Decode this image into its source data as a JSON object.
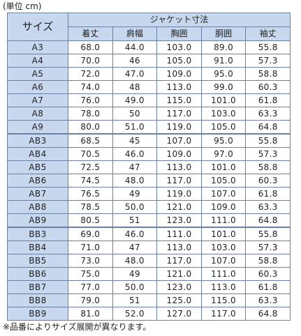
{
  "unit_label": "(単位 cm)",
  "header": {
    "size_label": "サイズ",
    "group_label": "ジャケット寸法",
    "columns": [
      "着丈",
      "肩幅",
      "胸囲",
      "胴囲",
      "袖丈"
    ]
  },
  "groups": [
    {
      "name": "A",
      "rows": [
        {
          "size": "A3",
          "values": [
            "68.0",
            "44.0",
            "103.0",
            "89.0",
            "55.8"
          ]
        },
        {
          "size": "A4",
          "values": [
            "70.0",
            "46",
            "105.0",
            "91.0",
            "57.3"
          ]
        },
        {
          "size": "A5",
          "values": [
            "72.0",
            "47.0",
            "109.0",
            "95.0",
            "58.8"
          ]
        },
        {
          "size": "A6",
          "values": [
            "74.0",
            "48",
            "113.0",
            "99.0",
            "60.3"
          ]
        },
        {
          "size": "A7",
          "values": [
            "76.0",
            "49.0",
            "115.0",
            "101.0",
            "61.8"
          ]
        },
        {
          "size": "A8",
          "values": [
            "78.0",
            "50",
            "117.0",
            "103.0",
            "63.3"
          ]
        },
        {
          "size": "A9",
          "values": [
            "80.0",
            "51.0",
            "119.0",
            "105.0",
            "64.8"
          ]
        }
      ]
    },
    {
      "name": "AB",
      "rows": [
        {
          "size": "AB3",
          "values": [
            "68.5",
            "45",
            "107.0",
            "95.0",
            "55.8"
          ]
        },
        {
          "size": "AB4",
          "values": [
            "70.5",
            "46.0",
            "109.0",
            "97.0",
            "57.3"
          ]
        },
        {
          "size": "AB5",
          "values": [
            "72.5",
            "47",
            "113.0",
            "101.0",
            "58.8"
          ]
        },
        {
          "size": "AB6",
          "values": [
            "74.5",
            "48.0",
            "117.0",
            "105.0",
            "60.3"
          ]
        },
        {
          "size": "AB7",
          "values": [
            "76.5",
            "49",
            "119.0",
            "107.0",
            "61.8"
          ]
        },
        {
          "size": "AB8",
          "values": [
            "78.5",
            "50.0",
            "121.0",
            "109.0",
            "63.3"
          ]
        },
        {
          "size": "AB9",
          "values": [
            "80.5",
            "51",
            "123.0",
            "111.0",
            "64.8"
          ]
        }
      ]
    },
    {
      "name": "BB",
      "rows": [
        {
          "size": "BB3",
          "values": [
            "69.0",
            "46.0",
            "111.0",
            "101.0",
            "55.8"
          ]
        },
        {
          "size": "BB4",
          "values": [
            "71.0",
            "47",
            "113.0",
            "103.0",
            "57.3"
          ]
        },
        {
          "size": "BB5",
          "values": [
            "73.0",
            "48.0",
            "117.0",
            "107.0",
            "58.8"
          ]
        },
        {
          "size": "BB6",
          "values": [
            "75.0",
            "49",
            "121.0",
            "111.0",
            "60.3"
          ]
        },
        {
          "size": "BB7",
          "values": [
            "77.0",
            "50.0",
            "123.0",
            "113.0",
            "61.8"
          ]
        },
        {
          "size": "BB8",
          "values": [
            "79.0",
            "51",
            "125.0",
            "115.0",
            "63.3"
          ]
        },
        {
          "size": "BB9",
          "values": [
            "81.0",
            "52.0",
            "127.0",
            "117.0",
            "64.8"
          ]
        }
      ]
    }
  ],
  "note": "※品番によりサイズ展開が異なります。",
  "colors": {
    "header_bg": "#c6d7ee",
    "border": "#6b7fa0",
    "cell_bg": "#ffffff"
  }
}
